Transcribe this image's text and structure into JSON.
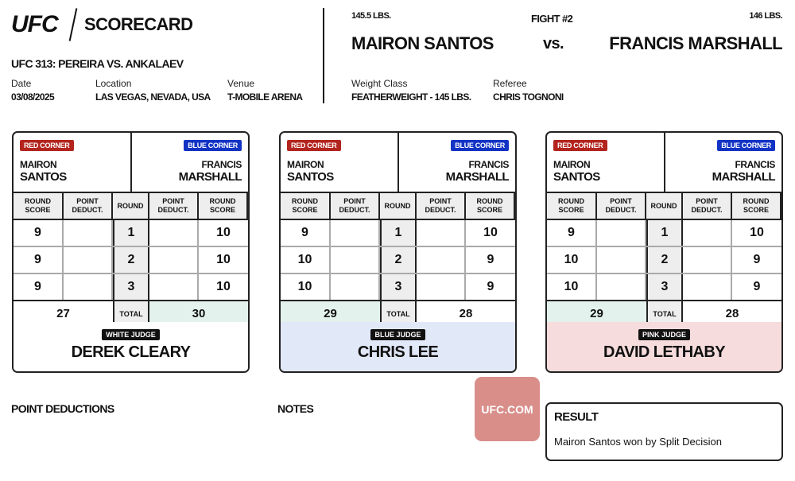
{
  "header": {
    "logo": "UFC",
    "title": "SCORECARD",
    "event": "UFC 313: PEREIRA VS. ANKALAEV",
    "date_label": "Date",
    "date": "03/08/2025",
    "location_label": "Location",
    "location": "LAS VEGAS, NEVADA, USA",
    "venue_label": "Venue",
    "venue": "T-MOBILE ARENA"
  },
  "fight": {
    "red_weight": "145.5 LBS.",
    "blue_weight": "146 LBS.",
    "number": "FIGHT #2",
    "red_name": "MAIRON SANTOS",
    "vs": "vs.",
    "blue_name": "FRANCIS MARSHALL",
    "weight_class_label": "Weight Class",
    "weight_class": "FEATHERWEIGHT - 145 LBS.",
    "referee_label": "Referee",
    "referee": "CHRIS TOGNONI"
  },
  "labels": {
    "red_corner": "RED CORNER",
    "blue_corner": "BLUE CORNER",
    "round_score": "ROUND SCORE",
    "point_deduct": "POINT DEDUCT.",
    "round": "ROUND",
    "total": "TOTAL"
  },
  "red_fighter": {
    "first": "MAIRON",
    "last": "SANTOS"
  },
  "blue_fighter": {
    "first": "FRANCIS",
    "last": "MARSHALL"
  },
  "judges": [
    {
      "tag": "WHITE JUDGE",
      "name": "DEREK CLEARY",
      "color": "#ffffff",
      "rounds": [
        {
          "round": "1",
          "red": "9",
          "blue": "10"
        },
        {
          "round": "2",
          "red": "9",
          "blue": "10"
        },
        {
          "round": "3",
          "red": "9",
          "blue": "10"
        }
      ],
      "red_total": "27",
      "blue_total": "30",
      "winner": "blue"
    },
    {
      "tag": "BLUE JUDGE",
      "name": "CHRIS LEE",
      "color": "#e1e8f8",
      "rounds": [
        {
          "round": "1",
          "red": "9",
          "blue": "10"
        },
        {
          "round": "2",
          "red": "10",
          "blue": "9"
        },
        {
          "round": "3",
          "red": "10",
          "blue": "9"
        }
      ],
      "red_total": "29",
      "blue_total": "28",
      "winner": "red"
    },
    {
      "tag": "PINK JUDGE",
      "name": "DAVID LETHABY",
      "color": "#f6dcdc",
      "rounds": [
        {
          "round": "1",
          "red": "9",
          "blue": "10"
        },
        {
          "round": "2",
          "red": "10",
          "blue": "9"
        },
        {
          "round": "3",
          "red": "10",
          "blue": "9"
        }
      ],
      "red_total": "29",
      "blue_total": "28",
      "winner": "red"
    }
  ],
  "footer": {
    "point_deductions": "POINT DEDUCTIONS",
    "notes": "NOTES",
    "site_link": "UFC.COM",
    "result_label": "RESULT",
    "result": "Mairon Santos won by Split Decision"
  },
  "colors": {
    "red_corner": "#b3241e",
    "blue_corner": "#1233c4",
    "winner_highlight": "#e3f2ec",
    "ufc_badge": "#d98e8a"
  }
}
